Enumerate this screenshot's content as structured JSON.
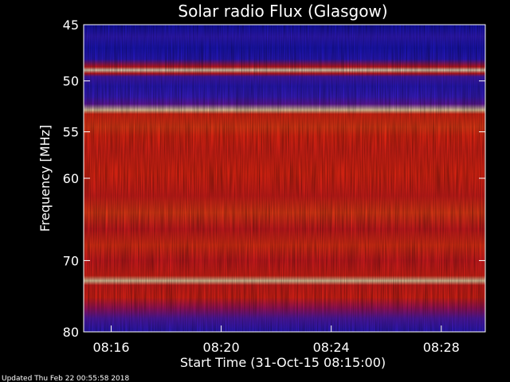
{
  "chart_data": {
    "type": "heatmap",
    "title": "Solar radio Flux (Glasgow)",
    "xlabel": "Start Time (31-Oct-15 08:15:00)",
    "ylabel": "Frequency [MHz]",
    "x_ticks": [
      {
        "label": "08:16",
        "minutes": 1
      },
      {
        "label": "08:20",
        "minutes": 5
      },
      {
        "label": "08:24",
        "minutes": 9
      },
      {
        "label": "08:28",
        "minutes": 13
      }
    ],
    "xlim_minutes": [
      0,
      14.6
    ],
    "y_ticks": [
      {
        "label": "45",
        "value": 45
      },
      {
        "label": "50",
        "value": 50
      },
      {
        "label": "55",
        "value": 55
      },
      {
        "label": "60",
        "value": 60
      },
      {
        "label": "70",
        "value": 70
      },
      {
        "label": "80",
        "value": 80
      }
    ],
    "ylim_mhz": [
      45,
      80
    ],
    "y_scale": "log",
    "colormap": "blue-red-yellow",
    "intensity_profile": [
      {
        "mhz": 45.0,
        "level": 0.18
      },
      {
        "mhz": 46.0,
        "level": 0.28
      },
      {
        "mhz": 47.0,
        "level": 0.22
      },
      {
        "mhz": 48.0,
        "level": 0.26
      },
      {
        "mhz": 48.7,
        "level": 0.55
      },
      {
        "mhz": 49.0,
        "level": 0.98
      },
      {
        "mhz": 49.3,
        "level": 0.55
      },
      {
        "mhz": 49.6,
        "level": 0.32
      },
      {
        "mhz": 50.5,
        "level": 0.26
      },
      {
        "mhz": 51.5,
        "level": 0.3
      },
      {
        "mhz": 52.2,
        "level": 0.36
      },
      {
        "mhz": 52.8,
        "level": 0.95
      },
      {
        "mhz": 53.2,
        "level": 0.62
      },
      {
        "mhz": 54.5,
        "level": 0.66
      },
      {
        "mhz": 55.5,
        "level": 0.62
      },
      {
        "mhz": 57.0,
        "level": 0.6
      },
      {
        "mhz": 59.5,
        "level": 0.62
      },
      {
        "mhz": 62.0,
        "level": 0.58
      },
      {
        "mhz": 64.0,
        "level": 0.66
      },
      {
        "mhz": 66.0,
        "level": 0.56
      },
      {
        "mhz": 68.0,
        "level": 0.64
      },
      {
        "mhz": 70.0,
        "level": 0.56
      },
      {
        "mhz": 72.0,
        "level": 0.6
      },
      {
        "mhz": 72.7,
        "level": 0.95
      },
      {
        "mhz": 73.3,
        "level": 0.58
      },
      {
        "mhz": 75.0,
        "level": 0.6
      },
      {
        "mhz": 76.5,
        "level": 0.46
      },
      {
        "mhz": 78.0,
        "level": 0.34
      },
      {
        "mhz": 80.0,
        "level": 0.26
      }
    ]
  },
  "footer": {
    "updated": "Updated Thu Feb 22 00:55:58 2018"
  }
}
